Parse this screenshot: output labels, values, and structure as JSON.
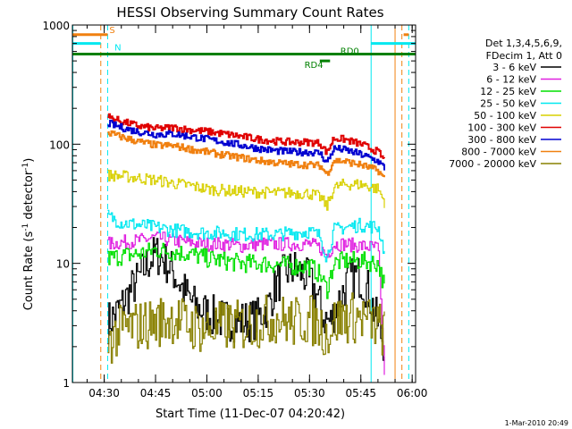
{
  "chart_data": {
    "type": "line",
    "title": "HESSI Observing Summary Count Rates",
    "xlabel": "Start Time (11-Dec-07 04:20:42)",
    "ylabel_main": "Count Rate (s",
    "ylabel_sup1": "-1",
    "ylabel_mid": " detector",
    "ylabel_sup2": "-1",
    "ylabel_end": ")",
    "footer": "1-Mar-2010 20:49",
    "y_scale": "log",
    "ylim": [
      1,
      1000
    ],
    "xlim": [
      "04:20:42",
      "06:01:00"
    ],
    "x_ticks": [
      "04:30",
      "04:45",
      "05:00",
      "05:15",
      "05:30",
      "05:45",
      "06:00"
    ],
    "y_ticks": [
      "1",
      "10",
      "100",
      "1000"
    ],
    "legend": {
      "placement": "right",
      "header_line1": "Det 1,3,4,5,6,9,",
      "header_line2": "FDecim 1, Att 0",
      "entries": [
        {
          "label": "3 - 6 keV",
          "color": "#000000"
        },
        {
          "label": "6 - 12 keV",
          "color": "#e020e0"
        },
        {
          "label": "12 - 25 keV",
          "color": "#00e000"
        },
        {
          "label": "25 - 50 keV",
          "color": "#00e8f0"
        },
        {
          "label": "50 - 100 keV",
          "color": "#d8d000"
        },
        {
          "label": "100 - 300 keV",
          "color": "#e00000"
        },
        {
          "label": "300 - 800 keV",
          "color": "#0000d0"
        },
        {
          "label": "800 - 7000 keV",
          "color": "#f08010"
        },
        {
          "label": "7000 - 20000 keV",
          "color": "#888000"
        }
      ]
    },
    "flags": [
      {
        "label": "S",
        "color": "#f08010",
        "segments": [
          [
            "04:20:42",
            "04:31:00"
          ],
          [
            "05:57:30",
            "05:59:00"
          ]
        ],
        "level": 830
      },
      {
        "label": "N",
        "color": "#00e8f0",
        "segments": [
          [
            "04:20:42",
            "04:29:00"
          ],
          [
            "05:48:00",
            "06:01:00"
          ]
        ],
        "level": 700
      },
      {
        "label": "RD0",
        "color": "#008000",
        "segments": [
          [
            "04:20:42",
            "06:01:00"
          ]
        ],
        "level": 570
      },
      {
        "label": "RD4",
        "color": "#008000",
        "segments": [
          [
            "05:33:00",
            "05:36:00"
          ]
        ],
        "level": 500
      }
    ],
    "markers": [
      {
        "time": "04:20:50",
        "color": "#00e8f0",
        "style": "solid"
      },
      {
        "time": "04:29:00",
        "color": "#f08010",
        "style": "dashed"
      },
      {
        "time": "04:31:00",
        "color": "#00e8f0",
        "style": "dashed"
      },
      {
        "time": "05:48:00",
        "color": "#00e8f0",
        "style": "solid"
      },
      {
        "time": "05:55:00",
        "color": "#f08010",
        "style": "solid"
      },
      {
        "time": "05:57:00",
        "color": "#f08010",
        "style": "dashed"
      },
      {
        "time": "05:59:00",
        "color": "#00e8f0",
        "style": "dashed"
      }
    ],
    "series": [
      {
        "name": "3 - 6 keV",
        "color": "#000000",
        "x": [
          "04:31",
          "04:34",
          "04:37",
          "04:40",
          "04:43",
          "04:45",
          "04:47",
          "04:50",
          "04:53",
          "04:56",
          "05:00",
          "05:04",
          "05:08",
          "05:12",
          "05:15",
          "05:18",
          "05:20",
          "05:23",
          "05:26",
          "05:29",
          "05:32",
          "05:34",
          "05:36",
          "05:38",
          "05:41",
          "05:44",
          "05:47",
          "05:50",
          "05:52"
        ],
        "values": [
          3.2,
          4.0,
          5.5,
          7.5,
          10.5,
          12.0,
          11.0,
          8.5,
          6.0,
          4.5,
          3.8,
          3.4,
          3.3,
          3.3,
          3.5,
          4.5,
          6.5,
          8.5,
          9.0,
          7.5,
          5.5,
          3.5,
          3.2,
          4.5,
          7.0,
          8.0,
          6.0,
          3.0,
          2.0
        ]
      },
      {
        "name": "6 - 12 keV",
        "color": "#e020e0",
        "x": [
          "04:31",
          "04:35",
          "04:40",
          "04:45",
          "04:50",
          "04:55",
          "05:00",
          "05:05",
          "05:10",
          "05:15",
          "05:20",
          "05:25",
          "05:30",
          "05:33",
          "05:35",
          "05:37",
          "05:40",
          "05:45",
          "05:50",
          "05:52"
        ],
        "values": [
          14.5,
          15.0,
          15.5,
          16.5,
          15.5,
          15.0,
          14.5,
          14.5,
          14.0,
          14.5,
          14.5,
          14.5,
          14.5,
          13.5,
          11.5,
          14.5,
          14.5,
          14.0,
          13.5,
          1.0
        ]
      },
      {
        "name": "12 - 25 keV",
        "color": "#00e000",
        "x": [
          "04:31",
          "04:35",
          "04:40",
          "04:45",
          "04:50",
          "04:55",
          "05:00",
          "05:05",
          "05:10",
          "05:15",
          "05:20",
          "05:25",
          "05:30",
          "05:33",
          "05:35",
          "05:37",
          "05:40",
          "05:45",
          "05:50",
          "05:52"
        ],
        "values": [
          11.0,
          11.5,
          12.0,
          13.0,
          12.5,
          12.0,
          11.0,
          10.5,
          10.0,
          10.0,
          9.8,
          9.5,
          9.5,
          8.0,
          6.0,
          10.0,
          10.5,
          10.5,
          10.0,
          6.0
        ]
      },
      {
        "name": "25 - 50 keV",
        "color": "#00e8f0",
        "x": [
          "04:31",
          "04:35",
          "04:40",
          "04:45",
          "04:50",
          "04:55",
          "05:00",
          "05:05",
          "05:10",
          "05:15",
          "05:20",
          "05:25",
          "05:30",
          "05:33",
          "05:35",
          "05:37",
          "05:40",
          "05:45",
          "05:50",
          "05:52"
        ],
        "values": [
          25.0,
          22.0,
          21.0,
          20.0,
          19.0,
          18.5,
          18.0,
          18.0,
          17.5,
          17.5,
          17.5,
          18.0,
          18.5,
          17.0,
          11.0,
          19.0,
          20.0,
          21.0,
          20.0,
          12.0
        ]
      },
      {
        "name": "50 - 100 keV",
        "color": "#d8d000",
        "x": [
          "04:31",
          "04:35",
          "04:40",
          "04:45",
          "04:50",
          "04:55",
          "05:00",
          "05:05",
          "05:10",
          "05:15",
          "05:20",
          "05:25",
          "05:30",
          "05:33",
          "05:35",
          "05:37",
          "05:40",
          "05:45",
          "05:50",
          "05:52"
        ],
        "values": [
          55.0,
          54.0,
          52.0,
          50.0,
          47.0,
          45.0,
          42.0,
          41.0,
          40.0,
          39.5,
          39.0,
          39.0,
          38.5,
          36.0,
          30.0,
          43.0,
          46.0,
          46.0,
          42.0,
          32.0
        ]
      },
      {
        "name": "100 - 300 keV",
        "color": "#e00000",
        "x": [
          "04:31",
          "04:35",
          "04:40",
          "04:45",
          "04:50",
          "04:55",
          "05:00",
          "05:05",
          "05:10",
          "05:15",
          "05:20",
          "05:25",
          "05:30",
          "05:33",
          "05:35",
          "05:37",
          "05:40",
          "05:45",
          "05:50",
          "05:52"
        ],
        "values": [
          170.0,
          155.0,
          142.0,
          135.0,
          138.0,
          132.0,
          128.0,
          122.0,
          116.0,
          110.0,
          106.0,
          104.0,
          104.0,
          102.0,
          85.0,
          112.0,
          110.0,
          100.0,
          86.0,
          72.0
        ]
      },
      {
        "name": "300 - 800 keV",
        "color": "#0000d0",
        "x": [
          "04:31",
          "04:35",
          "04:40",
          "04:45",
          "04:50",
          "04:55",
          "05:00",
          "05:05",
          "05:10",
          "05:15",
          "05:20",
          "05:25",
          "05:30",
          "05:33",
          "05:35",
          "05:37",
          "05:40",
          "05:45",
          "05:50",
          "05:52"
        ],
        "values": [
          150.0,
          138.0,
          127.0,
          121.0,
          122.0,
          116.0,
          110.0,
          104.0,
          98.0,
          92.0,
          88.0,
          86.0,
          86.0,
          84.0,
          70.0,
          92.0,
          90.0,
          82.0,
          72.0,
          62.0
        ]
      },
      {
        "name": "800 - 7000 keV",
        "color": "#f08010",
        "x": [
          "04:31",
          "04:35",
          "04:40",
          "04:45",
          "04:50",
          "04:55",
          "05:00",
          "05:05",
          "05:10",
          "05:15",
          "05:20",
          "05:25",
          "05:30",
          "05:33",
          "05:35",
          "05:37",
          "05:40",
          "05:45",
          "05:50",
          "05:52"
        ],
        "values": [
          125.0,
          115.0,
          105.0,
          98.0,
          97.0,
          91.0,
          86.0,
          81.0,
          77.0,
          73.0,
          70.0,
          68.0,
          67.0,
          66.0,
          56.0,
          73.0,
          72.0,
          67.0,
          60.0,
          50.0
        ]
      },
      {
        "name": "7000 - 20000 keV",
        "color": "#888000",
        "x": [
          "04:31",
          "04:35",
          "04:40",
          "04:45",
          "04:50",
          "04:55",
          "05:00",
          "05:05",
          "05:10",
          "05:15",
          "05:20",
          "05:25",
          "05:30",
          "05:33",
          "05:35",
          "05:37",
          "05:40",
          "05:45",
          "05:50",
          "05:52"
        ],
        "values": [
          2.2,
          2.8,
          3.0,
          3.2,
          3.5,
          3.0,
          2.8,
          3.0,
          3.0,
          3.2,
          3.5,
          3.2,
          3.4,
          3.0,
          2.5,
          3.2,
          3.5,
          3.5,
          3.0,
          2.5
        ]
      }
    ]
  }
}
